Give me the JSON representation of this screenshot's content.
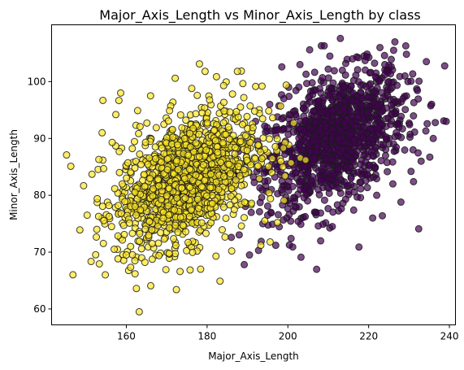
{
  "chart_data": {
    "type": "scatter",
    "title": "Major_Axis_Length vs Minor_Axis_Length by class",
    "xlabel": "Major_Axis_Length",
    "ylabel": "Minor_Axis_Length",
    "xlim": [
      141.5,
      241.5
    ],
    "ylim": [
      57.2,
      110.0
    ],
    "xticks": [
      160,
      180,
      200,
      220,
      240
    ],
    "yticks": [
      60,
      70,
      80,
      90,
      100
    ],
    "grid": false,
    "legend": "none",
    "series": [
      {
        "color": "#440154",
        "edgecolor": "#1a1a1a",
        "alpha": 0.7,
        "center": [
          212,
          90
        ],
        "spread": [
          8.5,
          6.0
        ],
        "count": 1200,
        "points": [
          [
            238.6,
            93.1
          ],
          [
            239.2,
            93.0
          ],
          [
            232.4,
            74.1
          ],
          [
            226.5,
            107.0
          ],
          [
            217.6,
            70.9
          ],
          [
            213.0,
            107.6
          ],
          [
            209.0,
            106.3
          ],
          [
            205.4,
            105.6
          ],
          [
            222.8,
            106.0
          ],
          [
            200.8,
            72.4
          ],
          [
            197.0,
            71.2
          ],
          [
            189.2,
            67.8
          ],
          [
            196.2,
            74.9
          ],
          [
            193.4,
            71.9
          ],
          [
            223.4,
            76.4
          ],
          [
            228.0,
            78.8
          ],
          [
            230.5,
            84.2
          ],
          [
            234.5,
            92.6
          ],
          [
            231.2,
            96.3
          ],
          [
            236.0,
            90.0
          ],
          [
            229.0,
            101.0
          ],
          [
            224.0,
            103.0
          ],
          [
            200.2,
            99.0
          ],
          [
            203.0,
            103.0
          ],
          [
            216.0,
            104.0
          ],
          [
            195.0,
            76.5
          ],
          [
            214.3,
            79.3
          ],
          [
            218.0,
            79.6
          ],
          [
            222.0,
            80.0
          ],
          [
            198.5,
            102.6
          ],
          [
            190.5,
            69.5
          ],
          [
            186.0,
            72.6
          ],
          [
            225.0,
            100.0
          ],
          [
            228.5,
            97.0
          ],
          [
            219.5,
            104.4
          ],
          [
            210.4,
            104.5
          ],
          [
            199.0,
            97.0
          ],
          [
            204.5,
            101.3
          ],
          [
            231.0,
            88.0
          ],
          [
            233.0,
            86.0
          ],
          [
            226.0,
            82.0
          ],
          [
            221.0,
            76.0
          ],
          [
            207.0,
            77.0
          ],
          [
            211.0,
            74.5
          ],
          [
            199.4,
            79.0
          ],
          [
            191.5,
            83.2
          ],
          [
            193.0,
            88.0
          ],
          [
            192.0,
            93.0
          ],
          [
            195.5,
            96.0
          ],
          [
            227.5,
            92.0
          ],
          [
            236.5,
            92.8
          ],
          [
            213.5,
            102.0
          ]
        ]
      },
      {
        "color": "#fde725",
        "edgecolor": "#1a1a1a",
        "alpha": 0.7,
        "center": [
          175,
          83
        ],
        "spread": [
          8.5,
          6.0
        ],
        "count": 1300,
        "points": [
          [
            145.2,
            87.1
          ],
          [
            148.5,
            73.9
          ],
          [
            154.8,
            66.0
          ],
          [
            162.5,
            63.6
          ],
          [
            163.2,
            59.5
          ],
          [
            172.4,
            63.4
          ],
          [
            183.2,
            64.9
          ],
          [
            154.2,
            96.7
          ],
          [
            157.4,
            94.2
          ],
          [
            162.8,
            94.9
          ],
          [
            179.5,
            101.8
          ],
          [
            187.5,
            101.8
          ],
          [
            166.0,
            97.5
          ],
          [
            176.2,
            98.8
          ],
          [
            193.6,
            99.2
          ],
          [
            199.6,
            99.4
          ],
          [
            150.3,
            76.5
          ],
          [
            152.7,
            74.0
          ],
          [
            152.8,
            79.4
          ],
          [
            154.0,
            91.0
          ],
          [
            151.5,
            83.7
          ],
          [
            153.2,
            86.3
          ],
          [
            157.0,
            70.5
          ],
          [
            160.0,
            69.5
          ],
          [
            163.8,
            69.0
          ],
          [
            164.6,
            68.2
          ],
          [
            170.6,
            69.8
          ],
          [
            178.4,
            67.0
          ],
          [
            182.2,
            69.3
          ],
          [
            186.1,
            70.2
          ],
          [
            193.3,
            71.2
          ],
          [
            195.6,
            71.8
          ],
          [
            197.4,
            75.2
          ],
          [
            195.7,
            79.4
          ],
          [
            199.3,
            83.4
          ],
          [
            200.8,
            85.7
          ],
          [
            204.4,
            86.2
          ],
          [
            198.2,
            95.7
          ],
          [
            201.4,
            92.7
          ],
          [
            196.0,
            84.0
          ],
          [
            158.6,
            98.0
          ],
          [
            172.1,
            100.6
          ],
          [
            184.1,
            99.3
          ],
          [
            155.7,
            78.2
          ],
          [
            156.5,
            89.3
          ],
          [
            169.4,
            72.3
          ],
          [
            175.3,
            71.7
          ],
          [
            188.5,
            74.6
          ],
          [
            191.0,
            78.6
          ],
          [
            160.8,
            75.1
          ],
          [
            158.3,
            84.0
          ],
          [
            163.4,
            92.1
          ]
        ]
      }
    ]
  }
}
